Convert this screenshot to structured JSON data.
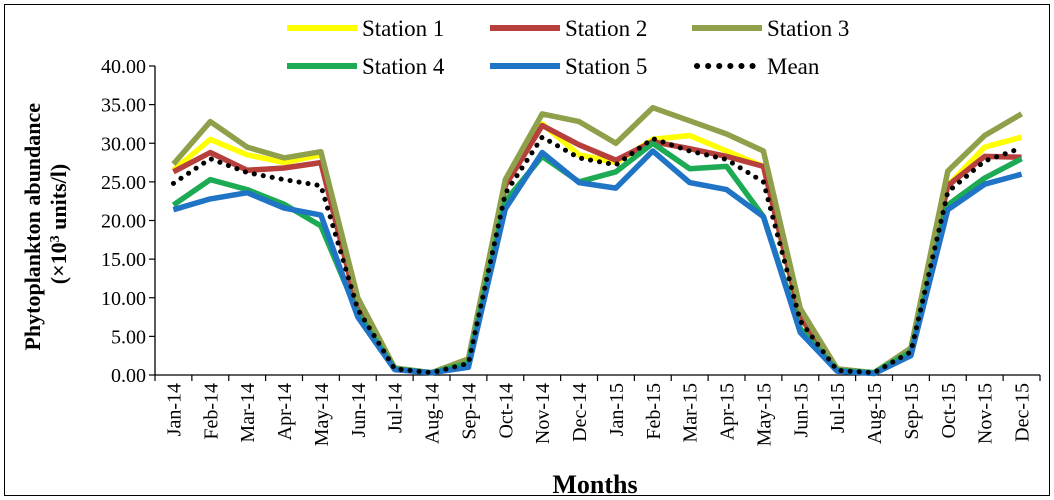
{
  "chart_data": {
    "type": "line",
    "xlabel": "Months",
    "ylabel": "Phytoplankton abundance",
    "ylabel_unit_prefix": "(×10",
    "ylabel_unit_exp": "3",
    "ylabel_unit_suffix": " units/l)",
    "ylim": [
      0,
      40
    ],
    "ytick_step": 5,
    "ytick_labels": [
      "0.00",
      "5.00",
      "10.00",
      "15.00",
      "20.00",
      "25.00",
      "30.00",
      "35.00",
      "40.00"
    ],
    "categories": [
      "Jan-14",
      "Feb-14",
      "Mar-14",
      "Apr-14",
      "May-14",
      "Jun-14",
      "Jul-14",
      "Aug-14",
      "Sep-14",
      "Oct-14",
      "Nov-14",
      "Dec-14",
      "Jan-15",
      "Feb-15",
      "Mar-15",
      "Apr-15",
      "May-15",
      "Jun-15",
      "Jul-15",
      "Aug-15",
      "Sep-15",
      "Oct-15",
      "Nov-15",
      "Dec-15"
    ],
    "grid": false,
    "legend_position": "top",
    "series": [
      {
        "name": "Station 1",
        "color": "#FFFF00",
        "style": "solid",
        "values": [
          26.5,
          30.5,
          28.5,
          27.5,
          28.5,
          9.5,
          0.8,
          0.3,
          1.5,
          24.5,
          32.5,
          28.5,
          27.5,
          30.5,
          31.0,
          29.0,
          27.0,
          7.5,
          0.6,
          0.3,
          3.0,
          24.5,
          29.5,
          30.8
        ]
      },
      {
        "name": "Station 2",
        "color": "#B8403C",
        "style": "solid",
        "values": [
          26.3,
          28.8,
          26.5,
          26.8,
          27.5,
          8.5,
          0.8,
          0.3,
          1.5,
          24.5,
          32.3,
          29.8,
          27.8,
          30.2,
          29.3,
          28.3,
          27.0,
          7.5,
          0.6,
          0.3,
          3.0,
          24.5,
          28.3,
          28.2
        ]
      },
      {
        "name": "Station 3",
        "color": "#8EA04A",
        "style": "solid",
        "values": [
          27.3,
          32.8,
          29.5,
          28.1,
          28.9,
          10.0,
          0.9,
          0.3,
          2.1,
          25.3,
          33.8,
          32.8,
          30.0,
          34.6,
          32.9,
          31.2,
          29.0,
          8.6,
          0.8,
          0.3,
          3.5,
          26.4,
          31.0,
          33.8
        ]
      },
      {
        "name": "Station 4",
        "color": "#1DAA55",
        "style": "solid",
        "values": [
          22.0,
          25.3,
          24.0,
          22.1,
          19.3,
          8.0,
          0.8,
          0.3,
          1.5,
          22.5,
          28.3,
          25.0,
          26.3,
          30.0,
          26.7,
          27.0,
          20.5,
          6.0,
          0.6,
          0.3,
          3.0,
          22.0,
          25.5,
          28.0
        ]
      },
      {
        "name": "Station 5",
        "color": "#1F74C6",
        "style": "solid",
        "values": [
          21.4,
          22.8,
          23.6,
          21.6,
          20.7,
          7.5,
          0.7,
          0.3,
          1.0,
          21.5,
          28.8,
          24.9,
          24.2,
          29.0,
          24.9,
          24.0,
          20.5,
          5.5,
          0.5,
          0.2,
          2.5,
          21.4,
          24.7,
          26.0
        ]
      },
      {
        "name": "Mean",
        "color": "#000000",
        "style": "dotted",
        "values": [
          24.8,
          28.0,
          26.2,
          25.3,
          24.5,
          8.5,
          0.8,
          0.3,
          1.5,
          23.5,
          30.8,
          28.1,
          27.2,
          30.6,
          29.0,
          27.9,
          25.0,
          7.0,
          0.6,
          0.3,
          3.0,
          23.7,
          27.7,
          29.4
        ]
      }
    ]
  }
}
